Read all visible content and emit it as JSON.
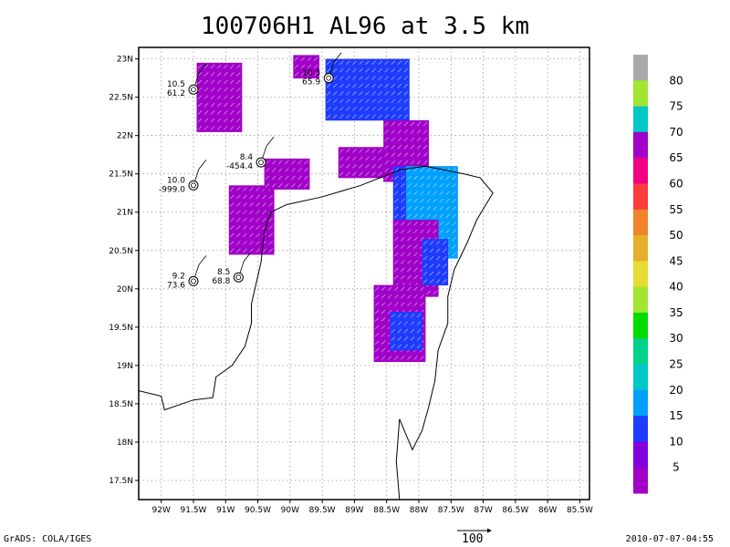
{
  "title": "100706H1 AL96 at 3.5 km",
  "footer": {
    "credit": "GrADS: COLA/IGES",
    "timestamp": "2010-07-07-04:55",
    "vector_scale_label": "100"
  },
  "chart_data": {
    "type": "map",
    "title": "100706H1 AL96 at 3.5 km",
    "xlim": [
      -92.35,
      -85.35
    ],
    "ylim": [
      17.25,
      23.15
    ],
    "x_tick_labels": [
      "92W",
      "91.5W",
      "91W",
      "90.5W",
      "90W",
      "89.5W",
      "89W",
      "88.5W",
      "88W",
      "87.5W",
      "87W",
      "86.5W",
      "86W",
      "85.5W"
    ],
    "x_tick_values": [
      -92,
      -91.5,
      -91,
      -90.5,
      -90,
      -89.5,
      -89,
      -88.5,
      -88,
      -87.5,
      -87,
      -86.5,
      -86,
      -85.5
    ],
    "y_tick_labels": [
      "17.5N",
      "18N",
      "18.5N",
      "19N",
      "19.5N",
      "20N",
      "20.5N",
      "21N",
      "21.5N",
      "22N",
      "22.5N",
      "23N"
    ],
    "y_tick_values": [
      17.5,
      18,
      18.5,
      19,
      19.5,
      20,
      20.5,
      21,
      21.5,
      22,
      22.5,
      23
    ],
    "grid": true,
    "colorbar": {
      "labels": [
        "5",
        "10",
        "15",
        "20",
        "25",
        "30",
        "35",
        "40",
        "45",
        "50",
        "55",
        "60",
        "65",
        "70",
        "75",
        "80"
      ],
      "colors": [
        "#a000c8",
        "#8200dc",
        "#1e3cff",
        "#00a0ff",
        "#00c8c8",
        "#00d28c",
        "#00dc00",
        "#a0e632",
        "#e6dc32",
        "#e6af2d",
        "#f08228",
        "#fa3c3c",
        "#f00082",
        "#a000c8",
        "#00c8c8",
        "#a0e632",
        "#aaaaaa"
      ]
    },
    "wind_fields": [
      {
        "color": "#a000c8",
        "lon": [
          -91.45,
          -90.85
        ],
        "lat": [
          22.05,
          22.9
        ]
      },
      {
        "color": "#a000c8",
        "lon": [
          -90.95,
          -90.35
        ],
        "lat": [
          20.45,
          21.3
        ]
      },
      {
        "color": "#a000c8",
        "lon": [
          -90.4,
          -89.75
        ],
        "lat": [
          21.3,
          21.7
        ]
      },
      {
        "color": "#a000c8",
        "lon": [
          -89.95,
          -89.6
        ],
        "lat": [
          22.75,
          23.05
        ]
      },
      {
        "color": "#1e3cff",
        "lon": [
          -89.45,
          -88.2
        ],
        "lat": [
          22.2,
          22.95
        ]
      },
      {
        "color": "#a000c8",
        "lon": [
          -89.25,
          -88.25
        ],
        "lat": [
          21.45,
          21.8
        ]
      },
      {
        "color": "#a000c8",
        "lon": [
          -88.55,
          -87.95
        ],
        "lat": [
          21.4,
          22.2
        ]
      },
      {
        "color": "#1e3cff",
        "lon": [
          -88.4,
          -87.45
        ],
        "lat": [
          20.5,
          21.6
        ]
      },
      {
        "color": "#00a0ff",
        "lon": [
          -88.2,
          -87.5
        ],
        "lat": [
          20.4,
          21.55
        ]
      },
      {
        "color": "#a000c8",
        "lon": [
          -88.4,
          -87.75
        ],
        "lat": [
          19.9,
          20.85
        ]
      },
      {
        "color": "#1e3cff",
        "lon": [
          -87.95,
          -87.6
        ],
        "lat": [
          20.05,
          20.6
        ]
      },
      {
        "color": "#a000c8",
        "lon": [
          -88.7,
          -87.95
        ],
        "lat": [
          19.05,
          20.05
        ]
      },
      {
        "color": "#1e3cff",
        "lon": [
          -88.45,
          -88.05
        ],
        "lat": [
          19.2,
          19.7
        ]
      }
    ],
    "stations": [
      {
        "lon": -91.5,
        "lat": 22.6,
        "top": "10.5",
        "bottom": "61.2"
      },
      {
        "lon": -89.4,
        "lat": 22.75,
        "top": "10.3",
        "bottom": "65.9"
      },
      {
        "lon": -90.45,
        "lat": 21.65,
        "top": "8.4",
        "bottom": "-454.4"
      },
      {
        "lon": -91.5,
        "lat": 21.35,
        "top": "10.0",
        "bottom": "-999.0"
      },
      {
        "lon": -91.5,
        "lat": 20.1,
        "top": "9.2",
        "bottom": "73.6"
      },
      {
        "lon": -90.8,
        "lat": 20.15,
        "top": "8.5",
        "bottom": "68.8"
      }
    ],
    "coastlines": [
      [
        [
          -92.35,
          18.67
        ],
        [
          -92.0,
          18.6
        ],
        [
          -91.95,
          18.42
        ],
        [
          -91.5,
          18.55
        ],
        [
          -91.2,
          18.58
        ],
        [
          -91.15,
          18.85
        ],
        [
          -90.9,
          19.0
        ],
        [
          -90.7,
          19.25
        ],
        [
          -90.6,
          19.55
        ],
        [
          -90.6,
          19.8
        ],
        [
          -90.45,
          20.35
        ],
        [
          -90.4,
          20.75
        ],
        [
          -90.3,
          21.0
        ],
        [
          -90.05,
          21.1
        ],
        [
          -89.5,
          21.2
        ],
        [
          -88.9,
          21.35
        ],
        [
          -88.3,
          21.55
        ],
        [
          -87.9,
          21.6
        ],
        [
          -87.3,
          21.5
        ],
        [
          -87.05,
          21.45
        ],
        [
          -86.85,
          21.25
        ],
        [
          -87.1,
          20.9
        ],
        [
          -87.25,
          20.6
        ],
        [
          -87.45,
          20.25
        ],
        [
          -87.55,
          19.9
        ],
        [
          -87.55,
          19.55
        ],
        [
          -87.7,
          19.2
        ],
        [
          -87.75,
          18.8
        ],
        [
          -87.85,
          18.45
        ],
        [
          -87.95,
          18.15
        ],
        [
          -88.1,
          17.9
        ],
        [
          -88.3,
          18.3
        ],
        [
          -88.35,
          17.75
        ],
        [
          -88.3,
          17.25
        ]
      ]
    ]
  }
}
